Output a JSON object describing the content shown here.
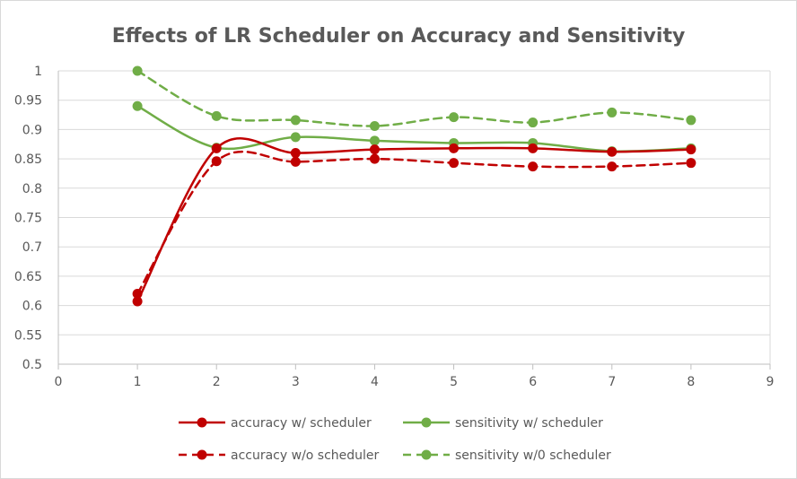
{
  "chart_data": {
    "type": "line",
    "title": "Effects of LR Scheduler on Accuracy and Sensitivity",
    "xlabel": "",
    "ylabel": "",
    "xlim": [
      0,
      9
    ],
    "ylim": [
      0.5,
      1
    ],
    "xticks": [
      "0",
      "1",
      "2",
      "3",
      "4",
      "5",
      "6",
      "7",
      "8",
      "9"
    ],
    "yticks": [
      "0.5",
      "0.55",
      "0.6",
      "0.65",
      "0.7",
      "0.75",
      "0.8",
      "0.85",
      "0.9",
      "0.95",
      "1"
    ],
    "grid": "horizontal",
    "legend_position": "bottom",
    "smoothed": true,
    "series": [
      {
        "name": "accuracy w/ scheduler",
        "color": "#c00000",
        "dash": "solid",
        "x": [
          1,
          2,
          3,
          4,
          5,
          6,
          7,
          8
        ],
        "values": [
          0.607,
          0.868,
          0.86,
          0.866,
          0.868,
          0.868,
          0.862,
          0.866
        ]
      },
      {
        "name": "sensitivity w/ scheduler",
        "color": "#70ad47",
        "dash": "solid",
        "x": [
          1,
          2,
          3,
          4,
          5,
          6,
          7,
          8
        ],
        "values": [
          0.94,
          0.869,
          0.887,
          0.881,
          0.877,
          0.877,
          0.863,
          0.868
        ]
      },
      {
        "name": "accuracy w/o scheduler",
        "color": "#c00000",
        "dash": "dashed",
        "x": [
          1,
          2,
          3,
          4,
          5,
          6,
          7,
          8
        ],
        "values": [
          0.62,
          0.846,
          0.845,
          0.85,
          0.843,
          0.837,
          0.837,
          0.843
        ]
      },
      {
        "name": "sensitivity w/0 scheduler",
        "color": "#70ad47",
        "dash": "dashed",
        "x": [
          1,
          2,
          3,
          4,
          5,
          6,
          7,
          8
        ],
        "values": [
          1.0,
          0.923,
          0.916,
          0.906,
          0.921,
          0.912,
          0.929,
          0.916
        ]
      }
    ]
  }
}
